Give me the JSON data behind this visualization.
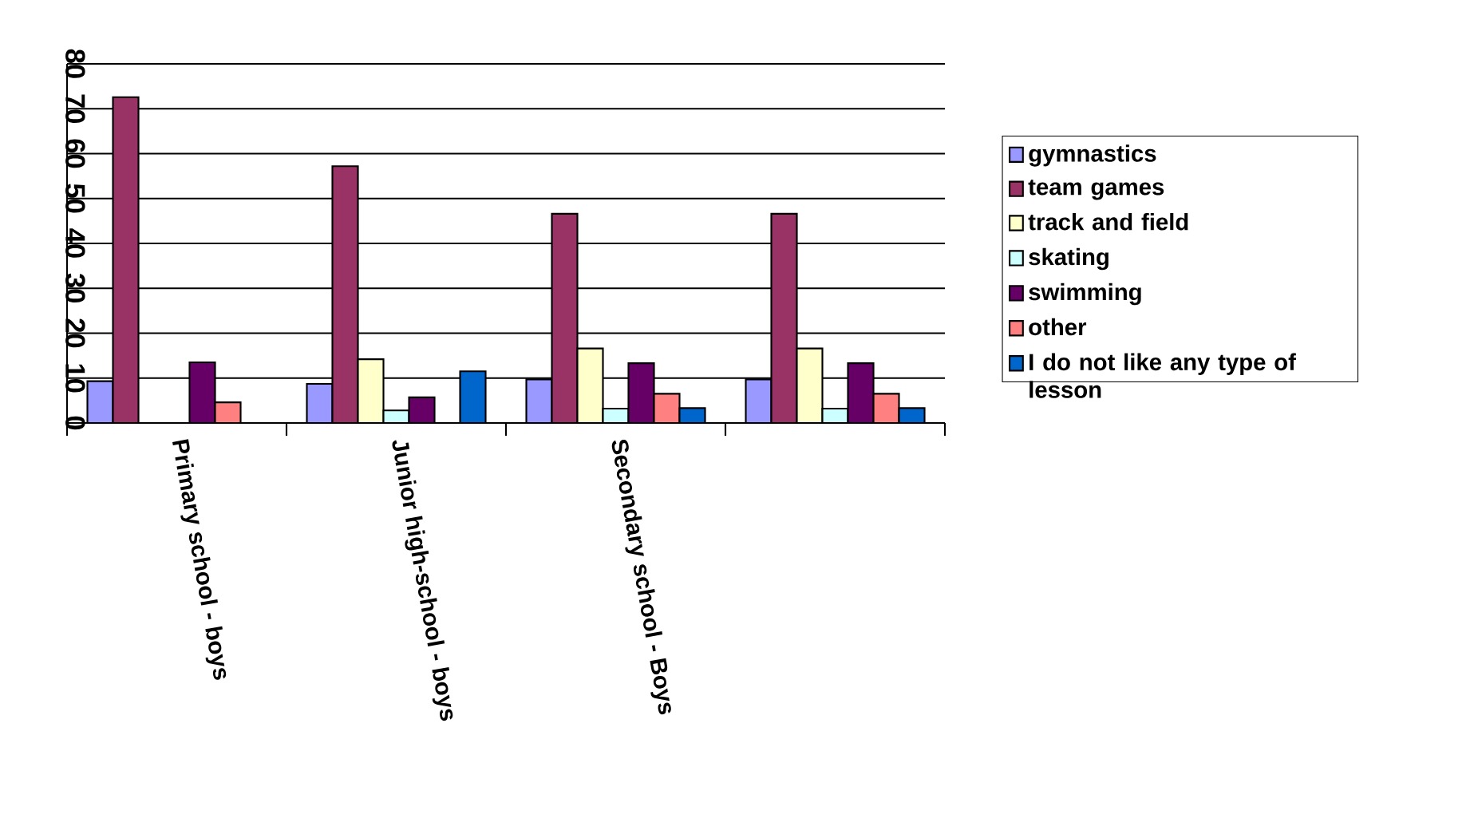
{
  "chart_data": {
    "type": "bar",
    "categories": [
      "Primary school - boys",
      "Junior high-school - boys",
      "Secondary school - Boys",
      null
    ],
    "series": [
      {
        "name": "gymnastics",
        "color": "#9999ff",
        "values": [
          9.3,
          8.7,
          9.7,
          9.7
        ]
      },
      {
        "name": "team games",
        "color": "#993366",
        "values": [
          72.6,
          57.2,
          46.6,
          46.6
        ]
      },
      {
        "name": "track and field",
        "color": "#ffffcc",
        "values": [
          null,
          14.2,
          16.6,
          16.6
        ]
      },
      {
        "name": "skating",
        "color": "#ccffff",
        "values": [
          null,
          2.8,
          3.2,
          3.2
        ]
      },
      {
        "name": "swimming",
        "color": "#660066",
        "values": [
          13.5,
          5.7,
          13.3,
          13.3
        ]
      },
      {
        "name": "other",
        "color": "#ff8080",
        "values": [
          4.6,
          null,
          6.5,
          6.5
        ]
      },
      {
        "name": "I do not like any type of lesson",
        "color": "#0066cc",
        "values": [
          null,
          11.5,
          3.3,
          3.3
        ]
      }
    ],
    "ylim": [
      0,
      80
    ],
    "yticks": [
      0,
      10,
      20,
      30,
      40,
      50,
      60,
      70,
      80
    ],
    "grid": "y",
    "legend": "right"
  }
}
